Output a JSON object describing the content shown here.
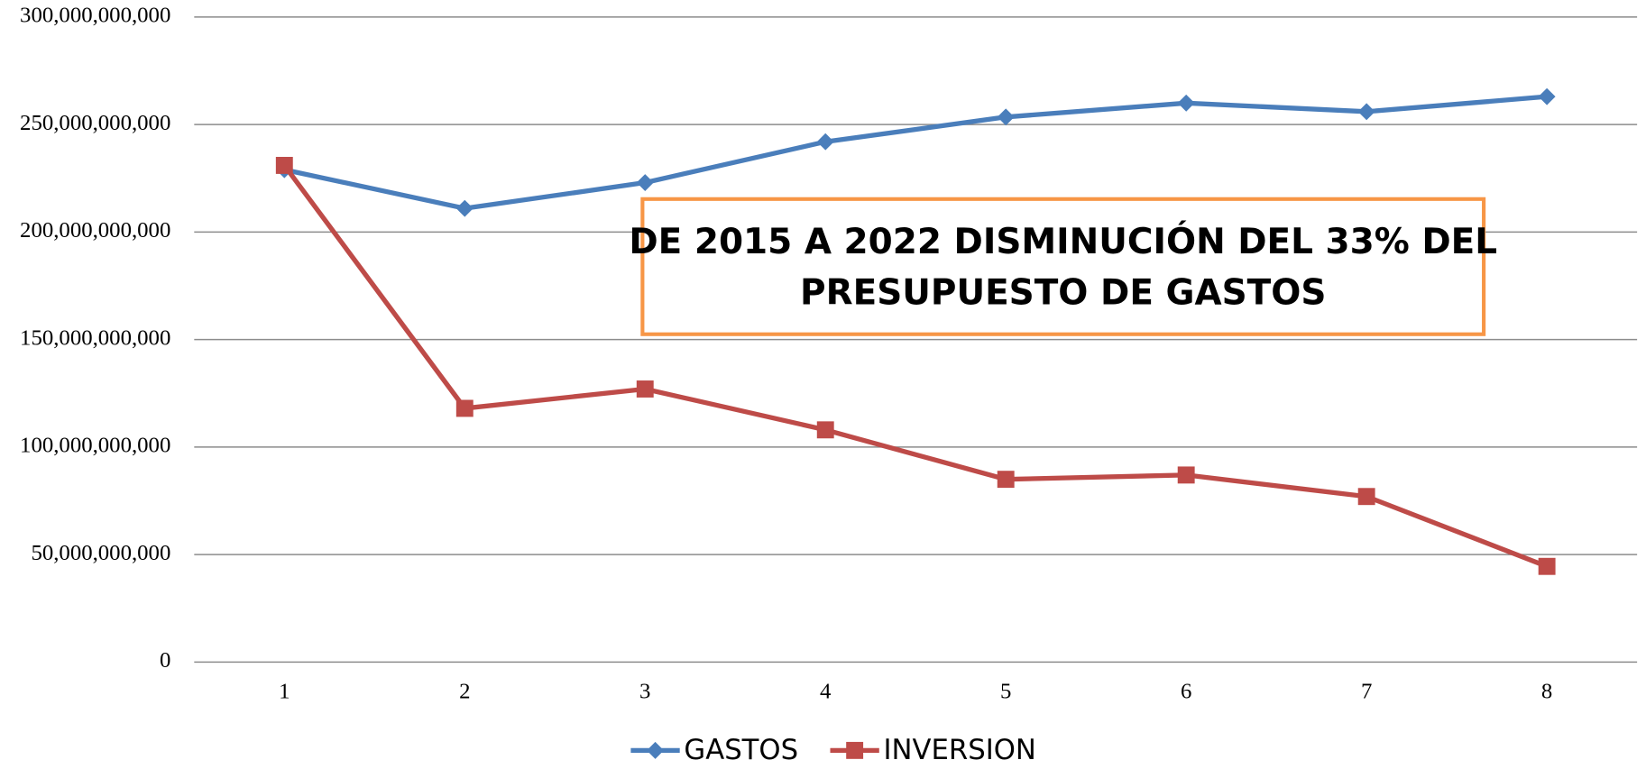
{
  "chart_data": {
    "type": "line",
    "categories": [
      "1",
      "2",
      "3",
      "4",
      "5",
      "6",
      "7",
      "8"
    ],
    "series": [
      {
        "name": "GASTOS",
        "color": "#4a7ebb",
        "marker": "diamond",
        "values": [
          229000000000,
          211000000000,
          223000000000,
          242000000000,
          253500000000,
          260000000000,
          256000000000,
          263000000000
        ]
      },
      {
        "name": "INVERSION",
        "color": "#be4b48",
        "marker": "square",
        "values": [
          231000000000,
          118000000000,
          127000000000,
          108000000000,
          85000000000,
          87000000000,
          77000000000,
          44500000000
        ]
      }
    ],
    "ylim": [
      0,
      300000000000
    ],
    "yticks": [
      0,
      {
        "value": 50000000000,
        "label": "50,000,000,000"
      },
      {
        "value": 100000000000,
        "label": "100,000,000,000"
      },
      {
        "value": 150000000000,
        "label": "150,000,000,000"
      },
      {
        "value": 200000000000,
        "label": "200,000,000,000"
      },
      {
        "value": 250000000000,
        "label": "250,000,000,000"
      },
      {
        "value": 300000000000,
        "label": "300,000,000,000"
      }
    ],
    "grid": true,
    "legend": "bottom",
    "annotation": [
      "DE 2015 A 2022 DISMINUCIÓN DEL 33% DEL",
      "PRESUPUESTO DE GASTOS"
    ]
  }
}
